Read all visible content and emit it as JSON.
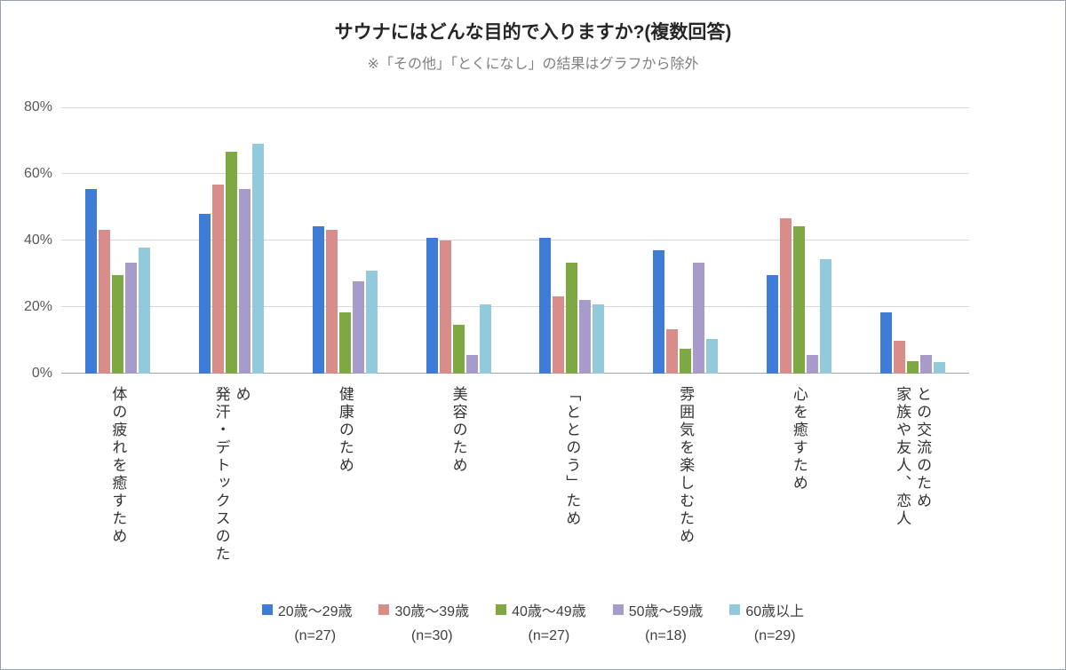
{
  "chart_data": {
    "type": "bar",
    "title": "サウナにはどんな目的で入りますか?(複数回答)",
    "subtitle": "※「その他」「とくになし」の結果はグラフから除外",
    "ylim": [
      0,
      80
    ],
    "yticks": [
      "0%",
      "20%",
      "40%",
      "60%",
      "80%"
    ],
    "grid": true,
    "legend_position": "bottom",
    "categories": [
      "体の疲れを癒すため",
      "発汗・デトックスのため",
      "健康のため",
      "美容のため",
      "「ととのう」ため",
      "雰囲気を楽しむため",
      "心を癒すため",
      "家族や友人、恋人\nとの交流のため"
    ],
    "series": [
      {
        "name": "20歳〜29歳",
        "n_label": "(n=27)",
        "color": "#3E7CD6",
        "values": [
          55.6,
          48.1,
          44.4,
          40.7,
          40.7,
          37.0,
          29.6,
          18.5
        ]
      },
      {
        "name": "30歳〜39歳",
        "n_label": "(n=30)",
        "color": "#D98D8B",
        "values": [
          43.3,
          56.7,
          43.3,
          40.0,
          23.3,
          13.3,
          46.7,
          10.0
        ]
      },
      {
        "name": "40歳〜49歳",
        "n_label": "(n=27)",
        "color": "#7FA842",
        "values": [
          29.6,
          66.7,
          18.5,
          14.8,
          33.3,
          7.4,
          44.4,
          3.7
        ]
      },
      {
        "name": "50歳〜59歳",
        "n_label": "(n=18)",
        "color": "#A79CC8",
        "values": [
          33.3,
          55.6,
          27.8,
          5.6,
          22.2,
          33.3,
          5.6,
          5.6
        ]
      },
      {
        "name": "60歳以上",
        "n_label": "(n=29)",
        "color": "#92CADC",
        "values": [
          37.9,
          69.0,
          31.0,
          20.7,
          20.7,
          10.3,
          34.5,
          3.4
        ]
      }
    ]
  }
}
